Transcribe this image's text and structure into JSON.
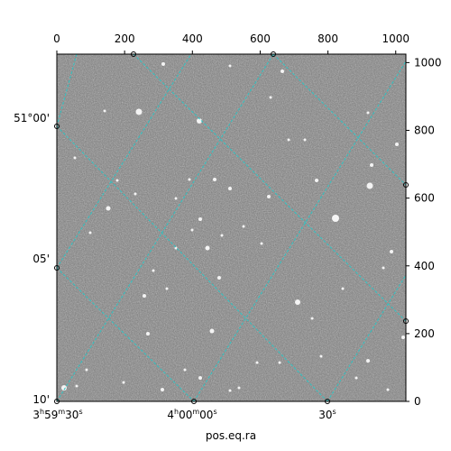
{
  "top_axis": {
    "ticks": [
      "0",
      "200",
      "400",
      "600",
      "800",
      "1000"
    ]
  },
  "right_axis": {
    "ticks": [
      "0",
      "200",
      "400",
      "600",
      "800",
      "1000"
    ]
  },
  "left_axis": {
    "ticks": [
      "10'",
      "05'",
      "51°00'"
    ]
  },
  "bottom_axis": {
    "xlabel": "pos.eq.ra",
    "ticks": [
      {
        "h": "3",
        "m": "59",
        "s": "30"
      },
      {
        "h": "4",
        "m": "00",
        "s": "00"
      },
      {
        "s": "30"
      }
    ]
  },
  "colors": {
    "grid": "#2ec4c4",
    "frame": "#000000",
    "sky": "#7a7a7a"
  }
}
